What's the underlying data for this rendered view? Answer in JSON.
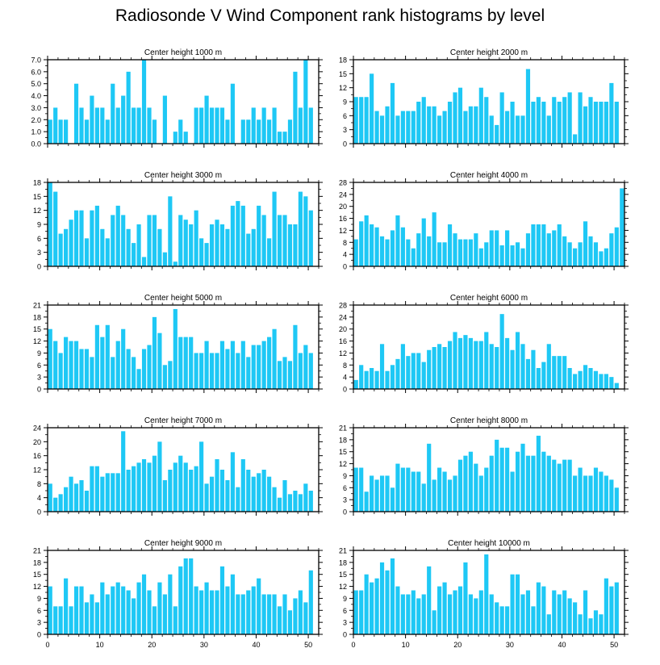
{
  "title": "Radiosonde V Wind Component rank histograms by level",
  "bar_color": "#1ec8f5",
  "axis_color": "#000000",
  "chart_data": [
    {
      "type": "bar",
      "title": "Center height 1000 m",
      "xlabel": "",
      "ylabel": "",
      "xlim": [
        0,
        52
      ],
      "ylim": [
        0,
        7.0
      ],
      "yticks": [
        0,
        1,
        2,
        3,
        4,
        5,
        6,
        7
      ],
      "ytick_labels": [
        "0.0",
        "1.0",
        "2.0",
        "3.0",
        "4.0",
        "5.0",
        "6.0",
        "7.0"
      ],
      "xticks": [
        0,
        10,
        20,
        30,
        40,
        50
      ],
      "values": [
        2,
        3,
        2,
        2,
        0,
        5,
        3,
        2,
        4,
        3,
        3,
        2,
        5,
        3,
        4,
        6,
        3,
        3,
        7,
        3,
        2,
        0,
        4,
        0,
        1,
        2,
        1,
        0,
        3,
        3,
        4,
        3,
        3,
        3,
        2,
        5,
        0,
        2,
        2,
        3,
        2,
        3,
        2,
        3,
        1,
        1,
        2,
        6,
        3,
        7,
        3
      ]
    },
    {
      "type": "bar",
      "title": "Center height 2000 m",
      "xlabel": "",
      "ylabel": "",
      "xlim": [
        0,
        52
      ],
      "ylim": [
        0,
        18
      ],
      "yticks": [
        0,
        3,
        6,
        9,
        12,
        15,
        18
      ],
      "ytick_labels": [
        "0",
        "3",
        "6",
        "9",
        "12",
        "15",
        "18"
      ],
      "xticks": [
        0,
        10,
        20,
        30,
        40,
        50
      ],
      "values": [
        10,
        10,
        10,
        15,
        7,
        6,
        8,
        13,
        6,
        7,
        7,
        7,
        9,
        10,
        8,
        8,
        6,
        7,
        9,
        11,
        12,
        7,
        8,
        8,
        12,
        10,
        6,
        4,
        11,
        7,
        9,
        6,
        6,
        16,
        9,
        10,
        9,
        6,
        10,
        9,
        10,
        11,
        2,
        11,
        8,
        10,
        9,
        9,
        9,
        13,
        9
      ]
    },
    {
      "type": "bar",
      "title": "Center height 3000 m",
      "xlabel": "",
      "ylabel": "",
      "xlim": [
        0,
        52
      ],
      "ylim": [
        0,
        18
      ],
      "yticks": [
        0,
        3,
        6,
        9,
        12,
        15,
        18
      ],
      "ytick_labels": [
        "0",
        "3",
        "6",
        "9",
        "12",
        "15",
        "18"
      ],
      "xticks": [
        0,
        10,
        20,
        30,
        40,
        50
      ],
      "values": [
        18,
        16,
        7,
        8,
        10,
        12,
        12,
        6,
        12,
        13,
        8,
        6,
        11,
        13,
        11,
        8,
        5,
        9,
        2,
        11,
        11,
        8,
        3,
        15,
        1,
        11,
        10,
        9,
        12,
        6,
        5,
        9,
        10,
        9,
        8,
        13,
        14,
        13,
        7,
        8,
        13,
        11,
        6,
        16,
        11,
        11,
        9,
        9,
        16,
        15,
        12
      ]
    },
    {
      "type": "bar",
      "title": "Center height 4000 m",
      "xlabel": "",
      "ylabel": "",
      "xlim": [
        0,
        52
      ],
      "ylim": [
        0,
        28
      ],
      "yticks": [
        0,
        4,
        8,
        12,
        16,
        20,
        24,
        28
      ],
      "ytick_labels": [
        "0",
        "4",
        "8",
        "12",
        "16",
        "20",
        "24",
        "28"
      ],
      "xticks": [
        0,
        10,
        20,
        30,
        40,
        50
      ],
      "values": [
        9,
        15,
        17,
        14,
        13,
        10,
        9,
        12,
        17,
        13,
        9,
        6,
        11,
        16,
        10,
        18,
        8,
        8,
        14,
        11,
        9,
        9,
        9,
        11,
        6,
        8,
        12,
        12,
        7,
        12,
        7,
        8,
        6,
        11,
        14,
        14,
        14,
        11,
        12,
        14,
        10,
        8,
        6,
        8,
        15,
        10,
        8,
        5,
        6,
        11,
        13,
        26
      ]
    },
    {
      "type": "bar",
      "title": "Center height 5000 m",
      "xlabel": "",
      "ylabel": "",
      "xlim": [
        0,
        52
      ],
      "ylim": [
        0,
        21
      ],
      "yticks": [
        0,
        3,
        6,
        9,
        12,
        15,
        18,
        21
      ],
      "ytick_labels": [
        "0",
        "3",
        "6",
        "9",
        "12",
        "15",
        "18",
        "21"
      ],
      "xticks": [
        0,
        10,
        20,
        30,
        40,
        50
      ],
      "values": [
        15,
        12,
        9,
        13,
        12,
        12,
        10,
        10,
        8,
        16,
        13,
        16,
        8,
        12,
        15,
        10,
        8,
        5,
        10,
        11,
        18,
        14,
        6,
        7,
        20,
        13,
        13,
        13,
        9,
        9,
        12,
        9,
        9,
        12,
        10,
        12,
        9,
        12,
        8,
        11,
        11,
        12,
        13,
        15,
        7,
        8,
        7,
        16,
        9,
        11,
        9
      ]
    },
    {
      "type": "bar",
      "title": "Center height 6000 m",
      "xlabel": "",
      "ylabel": "",
      "xlim": [
        0,
        52
      ],
      "ylim": [
        0,
        28
      ],
      "yticks": [
        0,
        4,
        8,
        12,
        16,
        20,
        24,
        28
      ],
      "ytick_labels": [
        "0",
        "4",
        "8",
        "12",
        "16",
        "20",
        "24",
        "28"
      ],
      "xticks": [
        0,
        10,
        20,
        30,
        40,
        50
      ],
      "values": [
        3,
        8,
        6,
        7,
        6,
        15,
        6,
        8,
        10,
        15,
        11,
        12,
        12,
        9,
        13,
        14,
        15,
        14,
        16,
        19,
        17,
        18,
        17,
        16,
        16,
        19,
        15,
        14,
        25,
        17,
        13,
        19,
        15,
        10,
        13,
        7,
        9,
        15,
        11,
        11,
        11,
        7,
        5,
        6,
        8,
        7,
        6,
        5,
        5,
        4,
        2
      ]
    },
    {
      "type": "bar",
      "title": "Center height 7000 m",
      "xlabel": "",
      "ylabel": "",
      "xlim": [
        0,
        52
      ],
      "ylim": [
        0,
        24
      ],
      "yticks": [
        0,
        4,
        8,
        12,
        16,
        20,
        24
      ],
      "ytick_labels": [
        "0",
        "4",
        "8",
        "12",
        "16",
        "20",
        "24"
      ],
      "xticks": [
        0,
        10,
        20,
        30,
        40,
        50
      ],
      "values": [
        8,
        4,
        5,
        7,
        10,
        8,
        9,
        6,
        13,
        13,
        10,
        11,
        11,
        11,
        23,
        12,
        13,
        14,
        15,
        14,
        16,
        20,
        9,
        12,
        14,
        16,
        14,
        12,
        13,
        20,
        8,
        10,
        15,
        12,
        9,
        17,
        7,
        15,
        12,
        10,
        11,
        12,
        10,
        7,
        4,
        9,
        5,
        6,
        5,
        8,
        6
      ]
    },
    {
      "type": "bar",
      "title": "Center height 8000 m",
      "xlabel": "",
      "ylabel": "",
      "xlim": [
        0,
        52
      ],
      "ylim": [
        0,
        21
      ],
      "yticks": [
        0,
        3,
        6,
        9,
        12,
        15,
        18,
        21
      ],
      "ytick_labels": [
        "0",
        "3",
        "6",
        "9",
        "12",
        "15",
        "18",
        "21"
      ],
      "xticks": [
        0,
        10,
        20,
        30,
        40,
        50
      ],
      "values": [
        11,
        11,
        5,
        9,
        8,
        9,
        9,
        6,
        12,
        11,
        11,
        10,
        10,
        7,
        17,
        8,
        11,
        10,
        8,
        9,
        13,
        14,
        15,
        12,
        9,
        11,
        14,
        18,
        16,
        16,
        10,
        15,
        17,
        14,
        14,
        19,
        15,
        14,
        13,
        12,
        13,
        13,
        9,
        11,
        9,
        9,
        11,
        10,
        9,
        8,
        6
      ]
    },
    {
      "type": "bar",
      "title": "Center height 9000 m",
      "xlabel": "",
      "ylabel": "",
      "xlim": [
        0,
        52
      ],
      "ylim": [
        0,
        21
      ],
      "yticks": [
        0,
        3,
        6,
        9,
        12,
        15,
        18,
        21
      ],
      "ytick_labels": [
        "0",
        "3",
        "6",
        "9",
        "12",
        "15",
        "18",
        "21"
      ],
      "xticks": [
        0,
        10,
        20,
        30,
        40,
        50
      ],
      "values": [
        12,
        7,
        7,
        14,
        7,
        12,
        12,
        8,
        10,
        8,
        13,
        10,
        12,
        13,
        12,
        11,
        9,
        13,
        15,
        11,
        7,
        13,
        10,
        15,
        7,
        17,
        19,
        19,
        12,
        11,
        13,
        11,
        11,
        17,
        12,
        15,
        10,
        10,
        11,
        12,
        14,
        10,
        10,
        10,
        7,
        10,
        6,
        9,
        11,
        8,
        16
      ]
    },
    {
      "type": "bar",
      "title": "Center height 10000 m",
      "xlabel": "",
      "ylabel": "",
      "xlim": [
        0,
        52
      ],
      "ylim": [
        0,
        21
      ],
      "yticks": [
        0,
        3,
        6,
        9,
        12,
        15,
        18,
        21
      ],
      "ytick_labels": [
        "0",
        "3",
        "6",
        "9",
        "12",
        "15",
        "18",
        "21"
      ],
      "xticks": [
        0,
        10,
        20,
        30,
        40,
        50
      ],
      "values": [
        11,
        11,
        15,
        13,
        14,
        18,
        16,
        19,
        12,
        10,
        10,
        11,
        9,
        10,
        17,
        6,
        12,
        13,
        10,
        11,
        12,
        18,
        10,
        9,
        11,
        20,
        10,
        8,
        7,
        7,
        15,
        15,
        10,
        11,
        7,
        13,
        12,
        5,
        11,
        10,
        11,
        9,
        8,
        5,
        11,
        4,
        6,
        5,
        14,
        12,
        13
      ]
    }
  ]
}
